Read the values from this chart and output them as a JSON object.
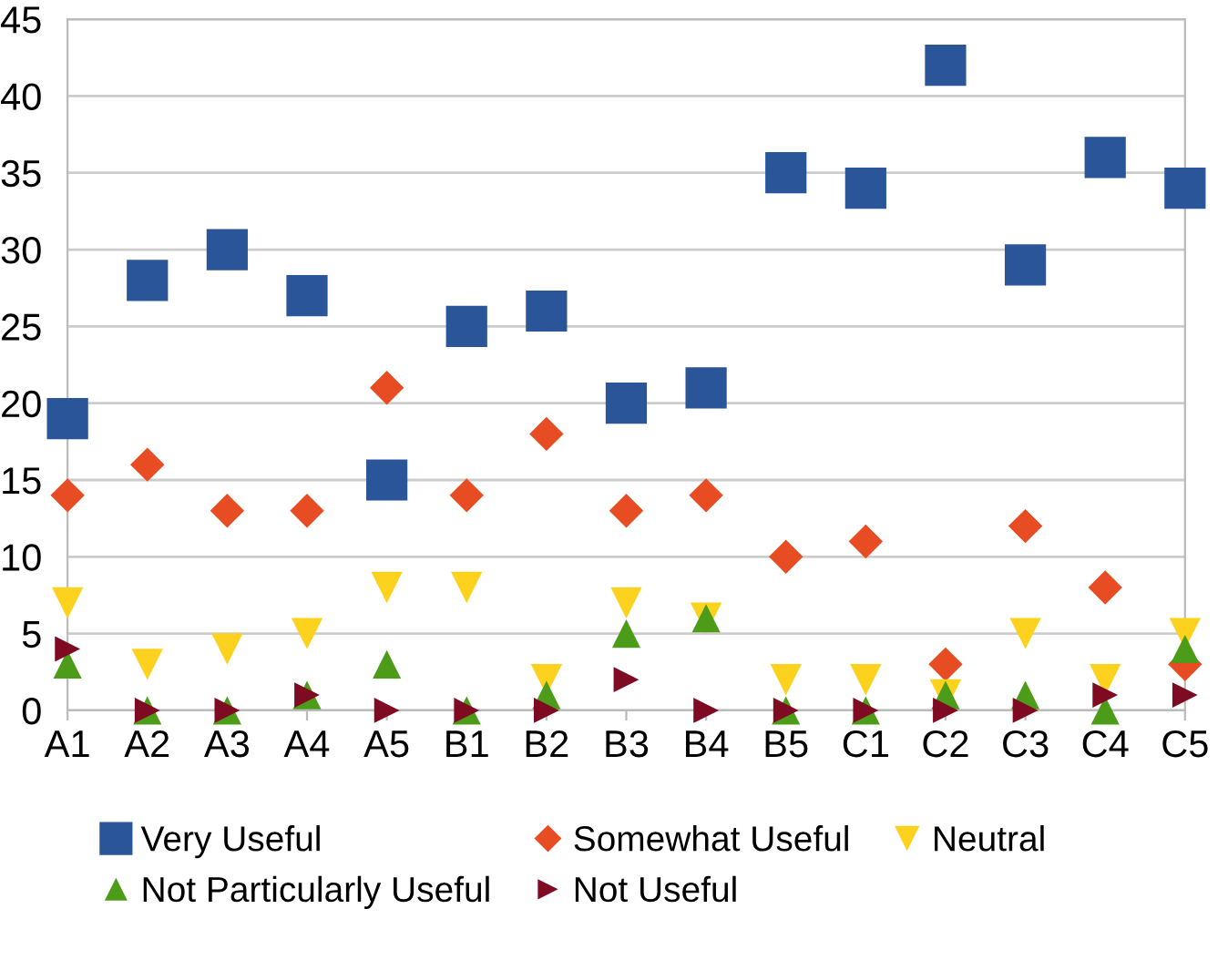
{
  "chart_data": {
    "type": "scatter",
    "categories": [
      "A1",
      "A2",
      "A3",
      "A4",
      "A5",
      "B1",
      "B2",
      "B3",
      "B4",
      "B5",
      "C1",
      "C2",
      "C3",
      "C4",
      "C5"
    ],
    "series": [
      {
        "name": "Very Useful",
        "color": "#2a5599",
        "marker": "square",
        "values": [
          19,
          28,
          30,
          27,
          15,
          25,
          26,
          20,
          21,
          35,
          34,
          42,
          29,
          36,
          34
        ]
      },
      {
        "name": "Somewhat Useful",
        "color": "#e84c22",
        "marker": "diamond",
        "values": [
          14,
          16,
          13,
          13,
          21,
          14,
          18,
          13,
          14,
          10,
          11,
          3,
          12,
          8,
          3
        ]
      },
      {
        "name": "Neutral",
        "color": "#fcd21f",
        "marker": "triangle_down",
        "values": [
          7,
          3,
          4,
          5,
          8,
          8,
          2,
          7,
          6,
          2,
          2,
          1,
          5,
          2,
          5
        ]
      },
      {
        "name": "Not Particularly Useful",
        "color": "#4c9c1a",
        "marker": "triangle",
        "values": [
          3,
          0,
          0,
          1,
          3,
          0,
          1,
          5,
          6,
          0,
          0,
          1,
          1,
          0,
          4
        ]
      },
      {
        "name": "Not Useful",
        "color": "#7e0b21",
        "marker": "triangle_right",
        "values": [
          4,
          0,
          0,
          1,
          0,
          0,
          0,
          2,
          0,
          0,
          0,
          0,
          0,
          1,
          1
        ]
      }
    ],
    "ylim": [
      0,
      45
    ],
    "yticks": [
      0,
      5,
      10,
      15,
      20,
      25,
      30,
      35,
      40,
      45
    ],
    "grid": "y",
    "legend": "bottom"
  }
}
